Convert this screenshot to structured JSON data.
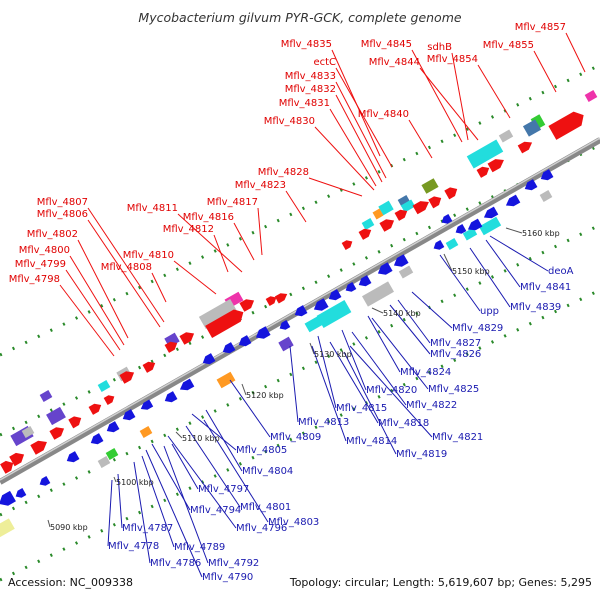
{
  "title": "Mycobacterium gilvum PYR-GCK, complete genome",
  "footer": {
    "accession": "Accession: NC_009338",
    "summary": "Topology: circular; Length: 5,619,607 bp; Genes: 5,295"
  },
  "scale_labels": [
    "5090 kbp",
    "5100 kbp",
    "5110 kbp",
    "5120 kbp",
    "5130 kbp",
    "5140 kbp",
    "5150 kbp",
    "5160 kbp"
  ],
  "colors": {
    "forward": "#ee1111",
    "reverse": "#1515dd",
    "backbone": "#888888",
    "cyan": "#22dddd",
    "orange": "#ff9922",
    "olive": "#779922",
    "gray": "#bbbbbb",
    "magenta": "#ee33aa",
    "purple": "#6644cc",
    "steel": "#4477aa",
    "green": "#33cc33",
    "yellow": "#eeee99"
  },
  "forward_labels": [
    "Mflv_4857",
    "sdhB",
    "Mflv_4845",
    "Mflv_4835",
    "Mflv_4855",
    "Mflv_4844",
    "Mflv_4854",
    "ectC",
    "Mflv_4833",
    "Mflv_4832",
    "Mflv_4831",
    "Mflv_4840",
    "Mflv_4830",
    "Mflv_4828",
    "Mflv_4823",
    "Mflv_4811",
    "Mflv_4817",
    "Mflv_4816",
    "Mflv_4812",
    "Mflv_4807",
    "Mflv_4806",
    "Mflv_4802",
    "Mflv_4810",
    "Mflv_4800",
    "Mflv_4808",
    "Mflv_4799",
    "Mflv_4798"
  ],
  "reverse_labels": [
    "5160 kbp",
    "deoA",
    "Mflv_4841",
    "5150 kbp",
    "Mflv_4839",
    "upp",
    "5140 kbp",
    "Mflv_4829",
    "Mflv_4827",
    "Mflv_4826",
    "5130 kbp",
    "Mflv_4824",
    "Mflv_4825",
    "Mflv_4820",
    "Mflv_4822",
    "5120 kbp",
    "Mflv_4815",
    "Mflv_4818",
    "Mflv_4813",
    "Mflv_4821",
    "Mflv_4809",
    "Mflv_4814",
    "5110 kbp",
    "Mflv_4819",
    "Mflv_4805",
    "Mflv_4804",
    "Mflv_4797",
    "5100 kbp",
    "Mflv_4801",
    "Mflv_4794",
    "Mflv_4796",
    "Mflv_4803",
    "Mflv_4787",
    "5090 kbp",
    "Mflv_4778",
    "Mflv_4789",
    "Mflv_4786",
    "Mflv_4792",
    "Mflv_4790"
  ]
}
